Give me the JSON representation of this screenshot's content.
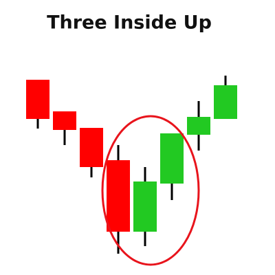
{
  "chart_data": {
    "type": "candlestick",
    "title": "Three Inside Up",
    "open": [
      284,
      238,
      214,
      167,
      63,
      133,
      204,
      227
    ],
    "high": [
      284,
      238,
      214,
      189,
      157,
      206,
      253,
      290
    ],
    "low": [
      213,
      189,
      142,
      31,
      42,
      109,
      181,
      227
    ],
    "close": [
      227,
      211,
      157,
      63,
      136,
      206,
      230,
      276
    ],
    "up_color": "#22c922",
    "down_color": "#ff0000",
    "ylim": [
      0,
      400
    ]
  }
}
